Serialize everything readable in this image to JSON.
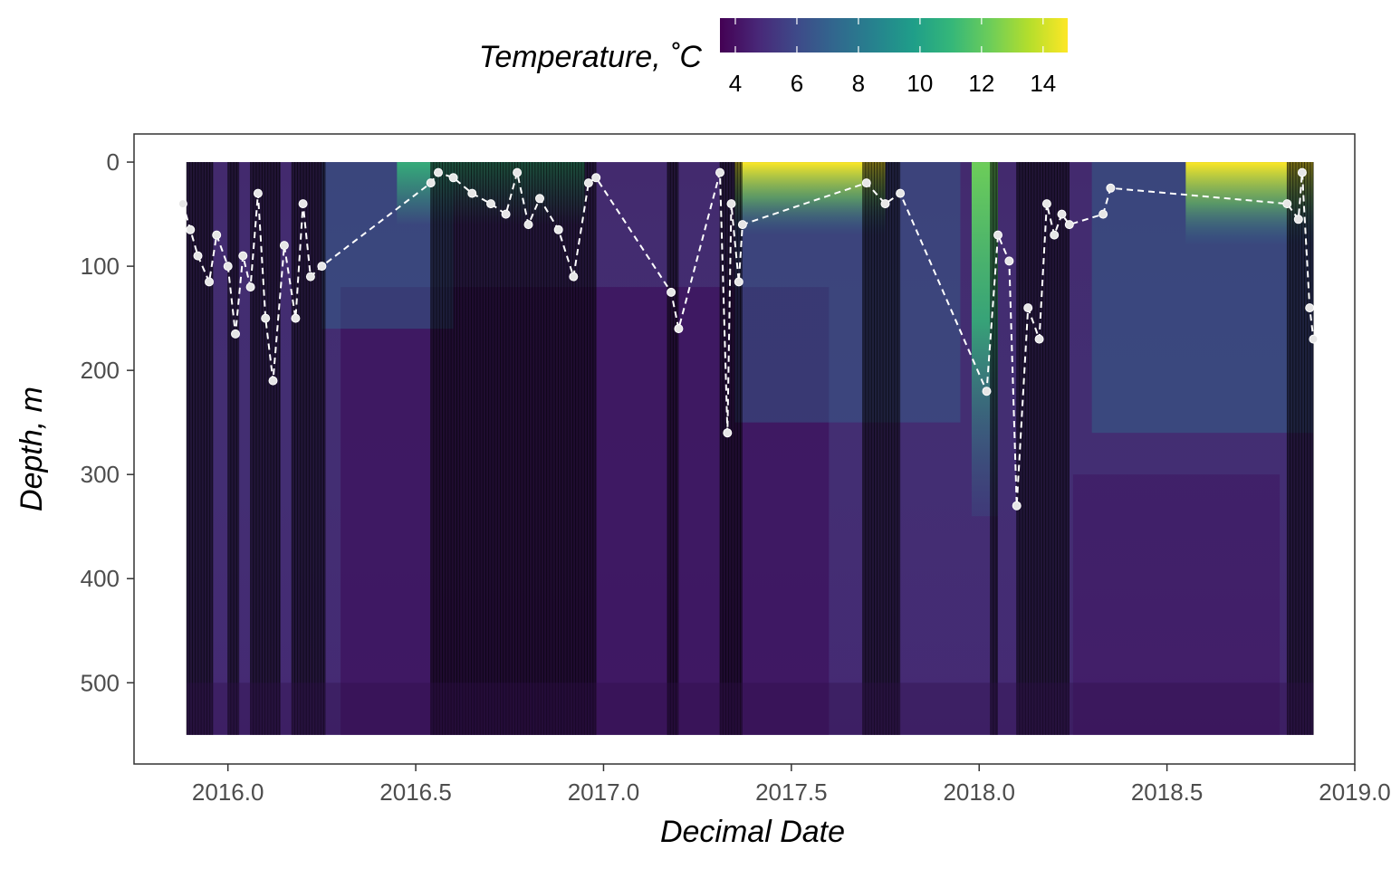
{
  "chart_data": {
    "type": "heatmap",
    "title": "",
    "xlabel": "Decimal Date",
    "ylabel": "Depth, m",
    "xlim": [
      2015.75,
      2019.0
    ],
    "ylim": [
      -27,
      578
    ],
    "y_reversed": true,
    "x_ticks": [
      2016.0,
      2016.5,
      2017.0,
      2017.5,
      2018.0,
      2018.5,
      2019.0
    ],
    "x_tick_labels": [
      "2016.0",
      "2016.5",
      "2017.0",
      "2017.5",
      "2018.0",
      "2018.5",
      "2019.0"
    ],
    "y_ticks": [
      0,
      100,
      200,
      300,
      400,
      500
    ],
    "y_tick_labels": [
      "0",
      "100",
      "200",
      "300",
      "400",
      "500"
    ],
    "heatmap_extent": {
      "x": [
        2015.89,
        2018.89
      ],
      "y": [
        0,
        550
      ]
    },
    "colorbar": {
      "title": "Temperature, ˚C",
      "range": [
        3.5,
        14.8
      ],
      "ticks": [
        4,
        6,
        8,
        10,
        12,
        14
      ],
      "tick_labels": [
        "4",
        "6",
        "8",
        "10",
        "12",
        "14"
      ],
      "palette": "viridis",
      "colors": [
        "#440154",
        "#482878",
        "#3e4a89",
        "#31688e",
        "#26828e",
        "#1f9e89",
        "#35b779",
        "#6dcd59",
        "#b4de2c",
        "#fde725"
      ]
    },
    "profile_bands": [
      [
        2015.89,
        2015.96
      ],
      [
        2016.0,
        2016.03
      ],
      [
        2016.06,
        2016.14
      ],
      [
        2016.17,
        2016.26
      ],
      [
        2016.54,
        2016.98
      ],
      [
        2017.17,
        2017.2
      ],
      [
        2017.31,
        2017.37
      ],
      [
        2017.69,
        2017.79
      ],
      [
        2018.03,
        2018.05
      ],
      [
        2018.1,
        2018.24
      ],
      [
        2018.82,
        2018.89
      ]
    ],
    "series": [
      {
        "style": "dashed line with points",
        "color": "#ffffff",
        "x": [
          2015.88,
          2015.9,
          2015.92,
          2015.95,
          2015.97,
          2016.0,
          2016.02,
          2016.04,
          2016.06,
          2016.08,
          2016.1,
          2016.12,
          2016.15,
          2016.18,
          2016.2,
          2016.22,
          2016.25,
          2016.54,
          2016.56,
          2016.6,
          2016.65,
          2016.7,
          2016.74,
          2016.77,
          2016.8,
          2016.83,
          2016.88,
          2016.92,
          2016.96,
          2016.98,
          2017.18,
          2017.2,
          2017.31,
          2017.33,
          2017.34,
          2017.36,
          2017.37,
          2017.7,
          2017.75,
          2017.79,
          2018.02,
          2018.05,
          2018.08,
          2018.1,
          2018.13,
          2018.16,
          2018.18,
          2018.2,
          2018.22,
          2018.24,
          2018.33,
          2018.35,
          2018.82,
          2018.85,
          2018.86,
          2018.88,
          2018.89
        ],
        "y": [
          40,
          65,
          90,
          115,
          70,
          100,
          165,
          90,
          120,
          30,
          150,
          210,
          80,
          150,
          40,
          110,
          100,
          20,
          10,
          15,
          30,
          40,
          50,
          10,
          60,
          35,
          65,
          110,
          20,
          15,
          125,
          160,
          10,
          260,
          40,
          115,
          60,
          20,
          40,
          30,
          220,
          70,
          95,
          330,
          140,
          170,
          40,
          70,
          50,
          60,
          50,
          25,
          40,
          55,
          10,
          140,
          170
        ]
      }
    ]
  }
}
